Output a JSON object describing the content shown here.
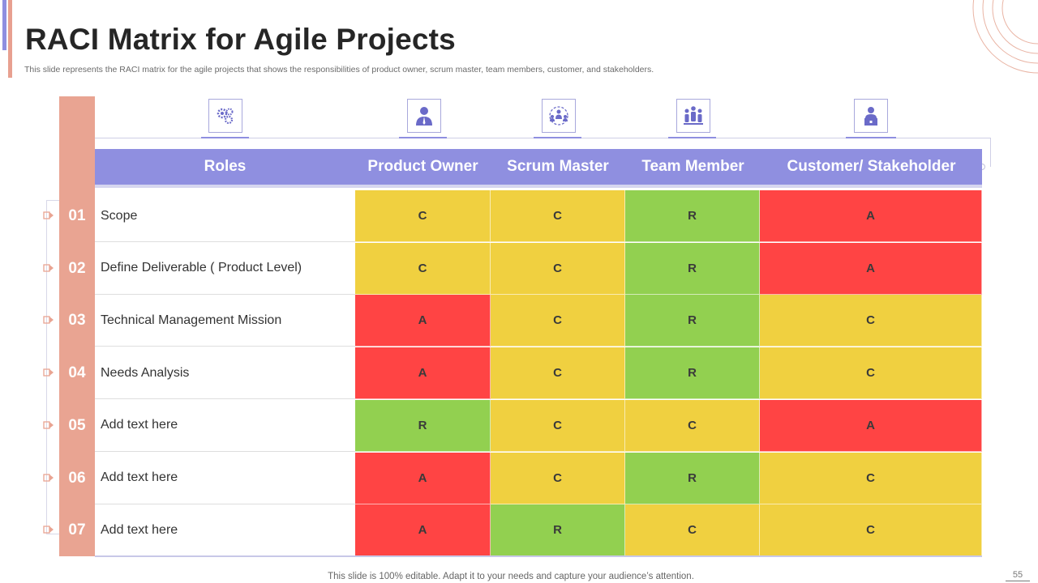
{
  "title": "RACI Matrix for Agile Projects",
  "subtitle": "This slide represents the RACI matrix for the agile projects that shows the responsibilities of product owner, scrum master, team members, customer, and stakeholders.",
  "colors": {
    "R": "#92d050",
    "A": "#ff4444",
    "C": "#f0d040",
    "header": "#8f8fe0",
    "accent": "#e9a492"
  },
  "table": {
    "headers": [
      "Roles",
      "Product Owner",
      "Scrum Master",
      "Team Member",
      "Customer/ Stakeholder"
    ],
    "header_icons": [
      "gears-icon",
      "business-person-icon",
      "team-network-icon",
      "team-group-icon",
      "customer-desk-icon"
    ],
    "rows": [
      {
        "num": "01",
        "label": "Scope",
        "values": [
          "C",
          "C",
          "R",
          "A"
        ]
      },
      {
        "num": "02",
        "label": "Define Deliverable ( Product Level)",
        "values": [
          "C",
          "C",
          "R",
          "A"
        ]
      },
      {
        "num": "03",
        "label": "Technical Management Mission",
        "values": [
          "A",
          "C",
          "R",
          "C"
        ]
      },
      {
        "num": "04",
        "label": "Needs Analysis",
        "values": [
          "A",
          "C",
          "R",
          "C"
        ]
      },
      {
        "num": "05",
        "label": "Add text here",
        "values": [
          "R",
          "C",
          "C",
          "A"
        ]
      },
      {
        "num": "06",
        "label": "Add text here",
        "values": [
          "A",
          "C",
          "R",
          "C"
        ]
      },
      {
        "num": "07",
        "label": "Add text here",
        "values": [
          "A",
          "R",
          "C",
          "C"
        ]
      }
    ]
  },
  "footer": "This slide is 100% editable. Adapt it to your needs and capture your audience’s attention.",
  "page_number": "55"
}
